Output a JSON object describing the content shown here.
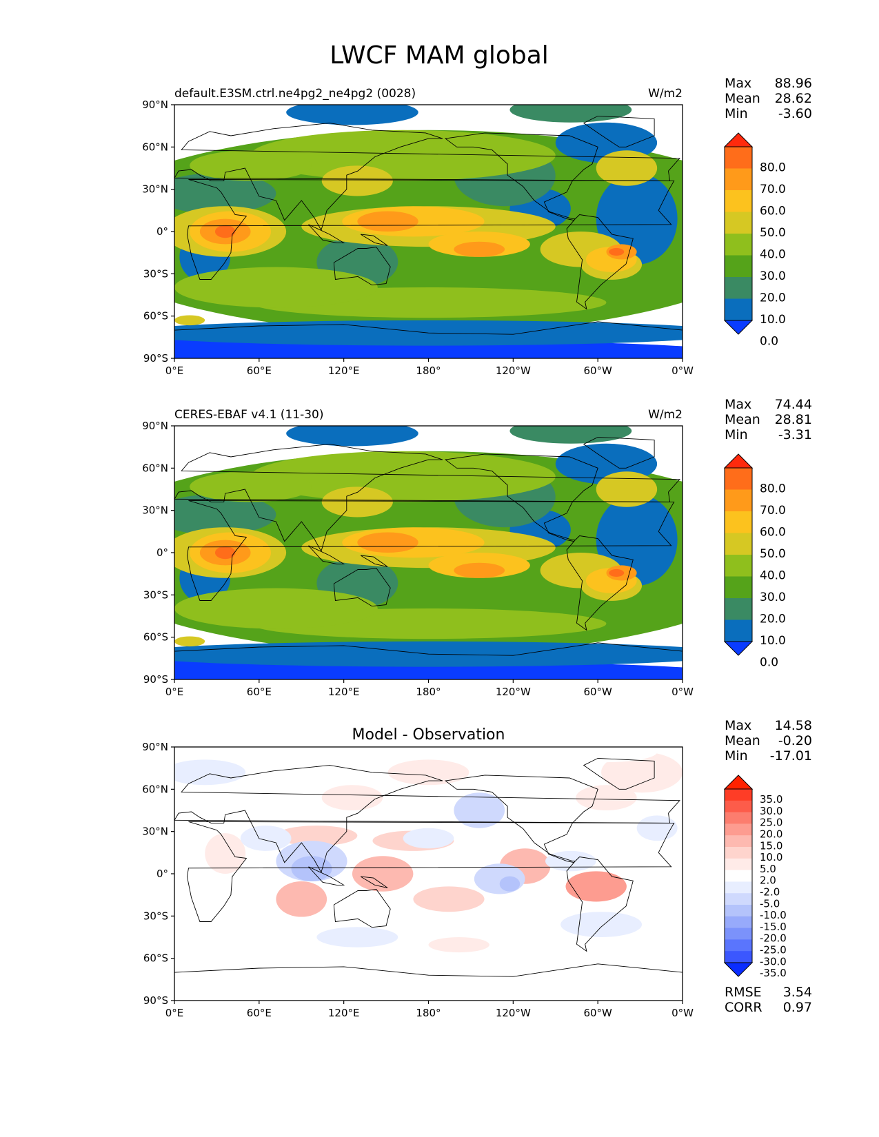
{
  "figure": {
    "title": "LWCF MAM global"
  },
  "panels": [
    {
      "id": "model",
      "title_left": "default.E3SM.ctrl.ne4pg2_ne4pg2 (0028)",
      "title_center": "",
      "units": "W/m2",
      "stats": [
        {
          "label": "Max",
          "value": "88.96"
        },
        {
          "label": "Mean",
          "value": "28.62"
        },
        {
          "label": "Min",
          "value": "-3.60"
        }
      ],
      "colorbar": {
        "labels": [
          "80.0",
          "70.0",
          "60.0",
          "50.0",
          "40.0",
          "30.0",
          "20.0",
          "10.0",
          "0.0"
        ],
        "colors": [
          "#ff2a0d",
          "#ff6d1a",
          "#ff9a1a",
          "#fcc21e",
          "#d6c823",
          "#8fbf1d",
          "#55a31a",
          "#3a8a63",
          "#0a6ebd",
          "#0a3cff"
        ]
      }
    },
    {
      "id": "obs",
      "title_left": "CERES-EBAF v4.1 (11-30)",
      "title_center": "",
      "units": "W/m2",
      "stats": [
        {
          "label": "Max",
          "value": "74.44"
        },
        {
          "label": "Mean",
          "value": "28.81"
        },
        {
          "label": "Min",
          "value": "-3.31"
        }
      ],
      "colorbar": {
        "labels": [
          "80.0",
          "70.0",
          "60.0",
          "50.0",
          "40.0",
          "30.0",
          "20.0",
          "10.0",
          "0.0"
        ],
        "colors": [
          "#ff2a0d",
          "#ff6d1a",
          "#ff9a1a",
          "#fcc21e",
          "#d6c823",
          "#8fbf1d",
          "#55a31a",
          "#3a8a63",
          "#0a6ebd",
          "#0a3cff"
        ]
      }
    },
    {
      "id": "diff",
      "title_left": "",
      "title_center": "Model - Observation",
      "units": "",
      "stats": [
        {
          "label": "Max",
          "value": "14.58"
        },
        {
          "label": "Mean",
          "value": "-0.20"
        },
        {
          "label": "Min",
          "value": "-17.01"
        }
      ],
      "metrics": [
        {
          "label": "RMSE",
          "value": "3.54"
        },
        {
          "label": "CORR",
          "value": "0.97"
        }
      ],
      "colorbar": {
        "labels": [
          "35.0",
          "30.0",
          "25.0",
          "20.0",
          "15.0",
          "10.0",
          "5.0",
          "2.0",
          "-2.0",
          "-5.0",
          "-10.0",
          "-15.0",
          "-20.0",
          "-25.0",
          "-30.0",
          "-35.0"
        ],
        "colors": [
          "#ff2200",
          "#fe3d26",
          "#fd5c4a",
          "#fc7d6e",
          "#fd9c90",
          "#fdb9b0",
          "#fed4cd",
          "#ffebe8",
          "#ffffff",
          "#e8eeff",
          "#cfd9fd",
          "#b4c3fb",
          "#97aafb",
          "#7b92fb",
          "#5a75fd",
          "#3b57fe",
          "#0a2dff"
        ]
      }
    }
  ],
  "axes": {
    "yticks": [
      "90°N",
      "60°N",
      "30°N",
      "0°",
      "30°S",
      "60°S",
      "90°S"
    ],
    "xticks": [
      "0°E",
      "60°E",
      "120°E",
      "180°",
      "120°W",
      "60°W",
      "0°W"
    ]
  }
}
